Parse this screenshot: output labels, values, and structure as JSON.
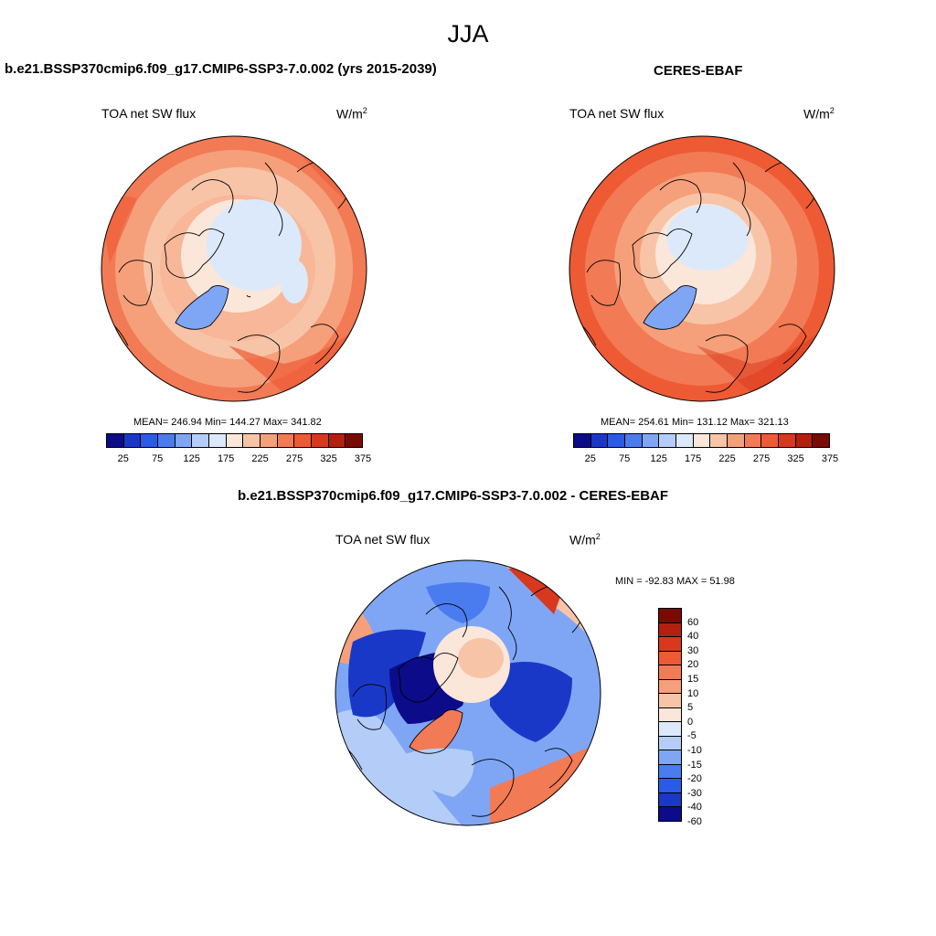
{
  "title": "JJA",
  "colors": {
    "abs_scale": [
      "#0c0c8a",
      "#1a38c8",
      "#2a5ae6",
      "#4a7cf0",
      "#7ea6f5",
      "#b4cdf8",
      "#dce9fa",
      "#fbe6da",
      "#f8c4a8",
      "#f5a07a",
      "#f27a55",
      "#ee5a34",
      "#d8381e",
      "#b3200f",
      "#7a0a04"
    ],
    "diff_scale": [
      "#7a0a04",
      "#b3200f",
      "#d8381e",
      "#ee5a34",
      "#f27a55",
      "#f5a07a",
      "#f8c4a8",
      "#fbe6da",
      "#dce9fa",
      "#b4cdf8",
      "#7ea6f5",
      "#4a7cf0",
      "#2a5ae6",
      "#1a38c8",
      "#0c0c8a"
    ]
  },
  "panels": {
    "model": {
      "title": "b.e21.BSSP370cmip6.f09_g17.CMIP6-SSP3-7.0.002 (yrs 2015-2039)",
      "variable": "TOA net SW flux",
      "units": "W/m",
      "units_exp": "2",
      "stats": "MEAN= 246.94  Min= 144.27  Max= 341.82",
      "ticks": [
        "25",
        "75",
        "125",
        "175",
        "225",
        "275",
        "325",
        "375"
      ]
    },
    "obs": {
      "title": "CERES-EBAF",
      "variable": "TOA net SW flux",
      "units": "W/m",
      "units_exp": "2",
      "stats": "MEAN= 254.61  Min= 131.12  Max= 321.13",
      "ticks": [
        "25",
        "75",
        "125",
        "175",
        "225",
        "275",
        "325",
        "375"
      ]
    },
    "diff": {
      "title": "b.e21.BSSP370cmip6.f09_g17.CMIP6-SSP3-7.0.002 - CERES-EBAF",
      "variable": "TOA net SW flux",
      "units": "W/m",
      "units_exp": "2",
      "stats": "MIN = -92.83 MAX =  51.98",
      "ticks": [
        "60",
        "40",
        "30",
        "20",
        "15",
        "10",
        "5",
        "0",
        "-5",
        "-10",
        "-15",
        "-20",
        "-30",
        "-40",
        "-60"
      ]
    }
  }
}
